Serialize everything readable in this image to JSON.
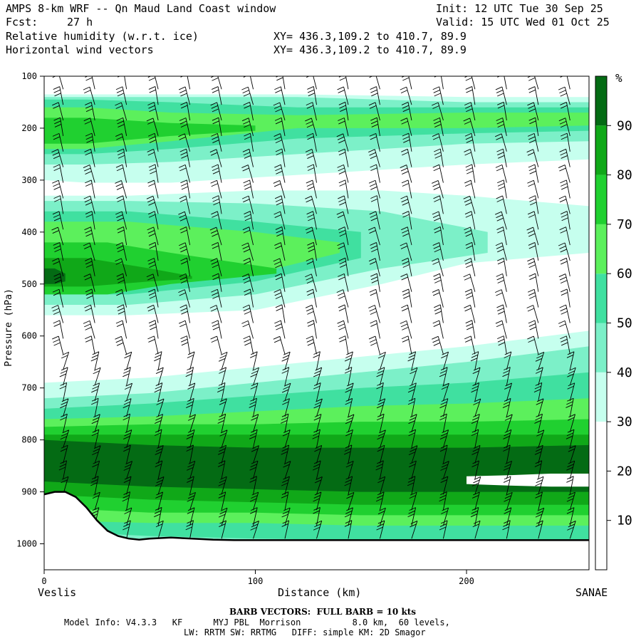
{
  "header": {
    "title": "AMPS 8-km WRF -- Qn Maud Land Coast window",
    "init": "Init: 12 UTC Tue 30 Sep 25",
    "fcst_label": "Fcst:",
    "fcst_value": "27 h",
    "valid": "Valid: 15 UTC Wed 01 Oct 25",
    "field1": "Relative humidity (w.r.t. ice)",
    "field2": "Horizontal wind vectors",
    "xy1": "XY= 436.3,109.2 to 410.7, 89.9",
    "xy2": "XY= 436.3,109.2 to 410.7, 89.9"
  },
  "footer": {
    "left_point": "Veslis",
    "right_point": "SANAE",
    "barb_note": "BARB VECTORS:  FULL BARB = 10 kts",
    "model_info": "Model Info: V4.3.3   KF      MYJ PBL  Morrison          8.0 km,  60 levels,",
    "physics": "LW: RRTM SW: RRTMG   DIFF: simple KM: 2D Smagor"
  },
  "chart_data": {
    "type": "heatmap",
    "xlabel": "Distance (km)",
    "ylabel": "Pressure (hPa)",
    "xlim": [
      0,
      258
    ],
    "ylim": [
      1050,
      100
    ],
    "x_ticks": [
      0,
      100,
      200
    ],
    "y_ticks": [
      100,
      200,
      300,
      400,
      500,
      600,
      700,
      800,
      900,
      1000
    ],
    "colorbar": {
      "unit": "%",
      "levels": [
        10,
        20,
        30,
        40,
        50,
        60,
        70,
        80,
        90
      ],
      "colors": [
        "#ffffff",
        "#ffffff",
        "#ffffff",
        "#c6ffee",
        "#7cf0c8",
        "#40e0a0",
        "#5cf05c",
        "#20d030",
        "#10a818",
        "#046b14"
      ]
    },
    "terrain": {
      "x": [
        0,
        5,
        10,
        15,
        20,
        25,
        30,
        35,
        40,
        45,
        50,
        60,
        70,
        80,
        90,
        100,
        150,
        200,
        258
      ],
      "p": [
        905,
        900,
        900,
        910,
        930,
        955,
        975,
        985,
        990,
        992,
        990,
        988,
        990,
        992,
        993,
        993,
        993,
        993,
        993
      ]
    },
    "rh_bands": [
      {
        "level": 3,
        "x": [
          0,
          20,
          60,
          120,
          200,
          258
        ],
        "top": [
          135,
          135,
          135,
          135,
          140,
          140
        ],
        "bottom": [
          300,
          305,
          305,
          290,
          270,
          260
        ]
      },
      {
        "level": 4,
        "x": [
          0,
          20,
          60,
          120,
          200,
          258
        ],
        "top": [
          140,
          140,
          140,
          140,
          150,
          150
        ],
        "bottom": [
          270,
          270,
          265,
          250,
          230,
          225
        ]
      },
      {
        "level": 5,
        "x": [
          0,
          20,
          60,
          120,
          200,
          258
        ],
        "top": [
          145,
          145,
          150,
          160,
          160,
          160
        ],
        "bottom": [
          250,
          250,
          240,
          220,
          210,
          205
        ]
      },
      {
        "level": 6,
        "x": [
          0,
          20,
          60,
          120,
          200,
          258
        ],
        "top": [
          160,
          160,
          170,
          175,
          170,
          170
        ],
        "bottom": [
          240,
          240,
          225,
          200,
          200,
          195
        ]
      },
      {
        "level": 7,
        "x": [
          0,
          20,
          60,
          100
        ],
        "top": [
          180,
          180,
          190,
          195
        ],
        "bottom": [
          230,
          230,
          215,
          205
        ]
      },
      {
        "level": 3,
        "x": [
          0,
          40,
          100,
          160,
          200,
          258
        ],
        "top": [
          330,
          330,
          320,
          320,
          330,
          350
        ],
        "bottom": [
          560,
          560,
          550,
          500,
          460,
          440
        ]
      },
      {
        "level": 4,
        "x": [
          0,
          40,
          100,
          160,
          210
        ],
        "top": [
          340,
          340,
          345,
          360,
          400
        ],
        "bottom": [
          540,
          540,
          520,
          470,
          440
        ]
      },
      {
        "level": 5,
        "x": [
          0,
          40,
          100,
          150
        ],
        "top": [
          360,
          360,
          380,
          400
        ],
        "bottom": [
          520,
          520,
          495,
          450
        ]
      },
      {
        "level": 6,
        "x": [
          0,
          40,
          100,
          140
        ],
        "top": [
          380,
          380,
          400,
          420
        ],
        "bottom": [
          510,
          510,
          480,
          440
        ]
      },
      {
        "level": 7,
        "x": [
          0,
          30,
          60,
          110
        ],
        "top": [
          420,
          420,
          440,
          470
        ],
        "bottom": [
          520,
          520,
          500,
          480
        ]
      },
      {
        "level": 8,
        "x": [
          0,
          20,
          50,
          70
        ],
        "top": [
          450,
          450,
          470,
          485
        ],
        "bottom": [
          505,
          505,
          495,
          490
        ]
      },
      {
        "level": 9,
        "x": [
          0,
          5,
          10
        ],
        "top": [
          470,
          470,
          480
        ],
        "bottom": [
          500,
          500,
          495
        ]
      },
      {
        "level": 3,
        "x": [
          0,
          50,
          100,
          150,
          200,
          258
        ],
        "top": [
          690,
          680,
          660,
          640,
          620,
          590
        ],
        "bottom": [
          990,
          990,
          993,
          993,
          993,
          993
        ]
      },
      {
        "level": 4,
        "x": [
          0,
          50,
          100,
          150,
          200,
          258
        ],
        "top": [
          720,
          710,
          690,
          670,
          650,
          620
        ],
        "bottom": [
          990,
          990,
          993,
          993,
          993,
          993
        ]
      },
      {
        "level": 5,
        "x": [
          0,
          50,
          100,
          150,
          200,
          258
        ],
        "top": [
          740,
          730,
          715,
          700,
          690,
          670
        ],
        "bottom": [
          975,
          985,
          990,
          993,
          993,
          993
        ]
      },
      {
        "level": 6,
        "x": [
          0,
          50,
          100,
          150,
          200,
          258
        ],
        "top": [
          760,
          755,
          745,
          735,
          730,
          720
        ],
        "bottom": [
          955,
          960,
          960,
          965,
          965,
          965
        ]
      },
      {
        "level": 7,
        "x": [
          0,
          50,
          100,
          150,
          200,
          258
        ],
        "top": [
          775,
          770,
          770,
          765,
          765,
          760
        ],
        "bottom": [
          930,
          940,
          940,
          945,
          945,
          945
        ]
      },
      {
        "level": 8,
        "x": [
          0,
          50,
          100,
          150,
          200,
          258
        ],
        "top": [
          790,
          790,
          790,
          790,
          790,
          790
        ],
        "bottom": [
          905,
          915,
          920,
          925,
          925,
          925
        ]
      },
      {
        "level": 9,
        "x": [
          0,
          50,
          100,
          150,
          200,
          258
        ],
        "top": [
          800,
          810,
          815,
          815,
          815,
          810
        ],
        "bottom": [
          880,
          890,
          895,
          900,
          900,
          900
        ]
      },
      {
        "level": 10,
        "x": [
          200,
          220,
          240,
          258
        ],
        "top": [
          870,
          868,
          865,
          865
        ],
        "bottom": [
          885,
          888,
          890,
          890
        ]
      }
    ],
    "wind_columns_x": [
      9,
      24,
      39,
      54,
      69,
      84,
      99,
      114,
      129,
      144,
      159,
      174,
      189,
      204,
      219,
      234,
      249
    ],
    "wind_levels_p": [
      125,
      155,
      185,
      215,
      245,
      275,
      305,
      335,
      365,
      395,
      425,
      455,
      485,
      515,
      545,
      575,
      605,
      635,
      665,
      695,
      725,
      755,
      785,
      815,
      845,
      875,
      905,
      935,
      965,
      990
    ]
  }
}
